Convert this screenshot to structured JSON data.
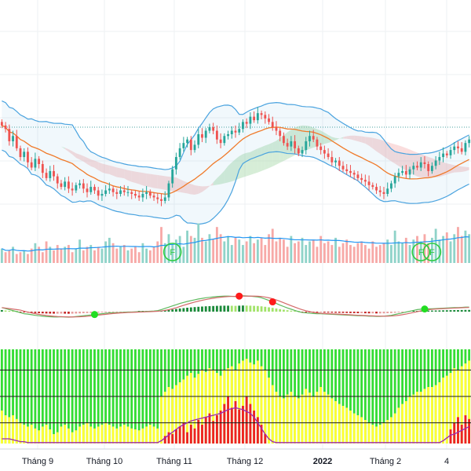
{
  "chart_data": {
    "type": "candlestick",
    "x_axis": {
      "tick_labels": [
        "Tháng 9",
        "Tháng 10",
        "Tháng 11",
        "Tháng 12",
        "2022",
        "Tháng 2",
        "4"
      ],
      "bold_labels": [
        "2022"
      ]
    },
    "grid": true,
    "colors": {
      "up": "#26a69a",
      "down": "#ef5350",
      "bollinger": "#4aa3df",
      "moving_average": "#f07a2a",
      "cloud_bull": "#a5d6a7",
      "cloud_bear": "#f4b4b4",
      "volume_ma": "#2196f3",
      "signal_dot_green": "#22dd22",
      "signal_dot_red": "#ff1a1a",
      "panel_green": "#33dd33",
      "panel_yellow": "#ffff33",
      "panel_red": "#ee2222",
      "panel_line": "#9c27b0"
    },
    "price_series": {
      "name": "",
      "close": [
        1242,
        1238,
        1224,
        1230,
        1216,
        1206,
        1212,
        1200,
        1194,
        1204,
        1198,
        1188,
        1182,
        1190,
        1184,
        1176,
        1172,
        1178,
        1170,
        1168,
        1174,
        1176,
        1170,
        1166,
        1172,
        1168,
        1162,
        1164,
        1168,
        1170,
        1166,
        1164,
        1168,
        1166,
        1166,
        1164,
        1162,
        1160,
        1164,
        1166,
        1162,
        1160,
        1158,
        1156,
        1160,
        1176,
        1192,
        1206,
        1216,
        1222,
        1226,
        1214,
        1220,
        1232,
        1228,
        1236,
        1240,
        1236,
        1226,
        1222,
        1230,
        1232,
        1236,
        1234,
        1238,
        1246,
        1244,
        1252,
        1248,
        1256,
        1254,
        1250,
        1246,
        1240,
        1236,
        1230,
        1222,
        1218,
        1224,
        1216,
        1210,
        1214,
        1224,
        1230,
        1226,
        1218,
        1214,
        1210,
        1206,
        1200,
        1202,
        1196,
        1192,
        1190,
        1188,
        1186,
        1182,
        1180,
        1178,
        1174,
        1172,
        1168,
        1166,
        1164,
        1170,
        1176,
        1184,
        1188,
        1190,
        1186,
        1192,
        1196,
        1194,
        1200,
        1198,
        1190,
        1196,
        1202,
        1206,
        1210,
        1208,
        1214,
        1218,
        1216,
        1212,
        1222,
        1226
      ],
      "ymin": 1130,
      "ymax": 1300,
      "reference_level": 1240
    },
    "volume_series": {
      "values": [
        0.8,
        0.6,
        0.7,
        0.9,
        0.5,
        0.6,
        0.7,
        0.5,
        0.8,
        1.1,
        0.9,
        0.6,
        1.2,
        0.9,
        0.7,
        1.0,
        0.8,
        0.9,
        1.0,
        0.6,
        0.8,
        1.3,
        0.7,
        0.9,
        1.0,
        0.7,
        0.9,
        0.8,
        1.2,
        1.4,
        1.1,
        0.8,
        0.9,
        1.0,
        0.7,
        0.8,
        0.9,
        0.6,
        1.1,
        0.8,
        0.7,
        0.9,
        1.2,
        2.0,
        1.1,
        1.6,
        1.0,
        1.3,
        1.5,
        0.9,
        1.8,
        1.5,
        1.4,
        2.2,
        1.4,
        1.2,
        1.6,
        1.3,
        2.0,
        1.6,
        1.2,
        1.5,
        1.0,
        1.4,
        1.3,
        1.0,
        1.2,
        1.5,
        1.1,
        1.3,
        1.4,
        1.0,
        1.6,
        1.9,
        1.2,
        1.4,
        1.3,
        0.9,
        1.5,
        1.1,
        1.2,
        1.4,
        1.0,
        1.2,
        1.3,
        0.9,
        1.5,
        1.1,
        1.2,
        1.0,
        1.4,
        0.9,
        1.1,
        1.3,
        1.0,
        0.9,
        1.1,
        1.2,
        1.0,
        0.8,
        1.2,
        0.9,
        1.0,
        1.1,
        1.3,
        1.0,
        1.8,
        1.2,
        1.1,
        1.4,
        1.0,
        1.3,
        1.5,
        1.2,
        1.6,
        1.1,
        1.4,
        1.9,
        1.3,
        1.5,
        1.7,
        1.2,
        1.6,
        2.0,
        1.5,
        1.8,
        1.6
      ],
      "markers": [
        {
          "label": "F",
          "index": 46
        },
        {
          "label": "F",
          "index": 113
        },
        {
          "label": "F",
          "index": 116
        }
      ]
    },
    "oscillator_series": {
      "values": [
        0.2,
        0.15,
        0.1,
        0.05,
        0,
        -0.05,
        -0.1,
        -0.12,
        -0.15,
        -0.18,
        -0.2,
        -0.22,
        -0.24,
        -0.25,
        -0.26,
        -0.26,
        -0.25,
        -0.26,
        -0.27,
        -0.26,
        -0.24,
        -0.22,
        -0.2,
        -0.18,
        -0.16,
        -0.14,
        -0.12,
        -0.1,
        -0.08,
        -0.06,
        -0.05,
        -0.05,
        -0.04,
        -0.03,
        -0.02,
        -0.02,
        -0.01,
        0,
        0,
        0.01,
        0.02,
        0.03,
        0.05,
        0.1,
        0.16,
        0.22,
        0.28,
        0.34,
        0.4,
        0.45,
        0.5,
        0.54,
        0.58,
        0.62,
        0.65,
        0.68,
        0.7,
        0.72,
        0.74,
        0.75,
        0.76,
        0.76,
        0.75,
        0.74,
        0.76,
        0.78,
        0.77,
        0.76,
        0.74,
        0.72,
        0.68,
        0.62,
        0.55,
        0.48,
        0.4,
        0.32,
        0.25,
        0.18,
        0.12,
        0.06,
        0,
        -0.04,
        -0.06,
        -0.08,
        -0.09,
        -0.1,
        -0.1,
        -0.11,
        -0.12,
        -0.13,
        -0.14,
        -0.15,
        -0.16,
        -0.17,
        -0.18,
        -0.19,
        -0.2,
        -0.2,
        -0.21,
        -0.22,
        -0.22,
        -0.23,
        -0.23,
        -0.22,
        -0.2,
        -0.18,
        -0.14,
        -0.1,
        -0.06,
        -0.02,
        0.02,
        0.06,
        0.1,
        0.12,
        0.13,
        0.14,
        0.14,
        0.15,
        0.16,
        0.17,
        0.18,
        0.19,
        0.2,
        0.2,
        0.21,
        0.22,
        0.22
      ],
      "signal_dots": [
        {
          "color": "green",
          "index": 25
        },
        {
          "color": "red",
          "index": 64
        },
        {
          "color": "red",
          "index": 73
        },
        {
          "color": "green",
          "index": 114
        }
      ]
    },
    "strength_panel": {
      "yellow_fraction": [
        0.35,
        0.3,
        0.28,
        0.3,
        0.26,
        0.22,
        0.2,
        0.18,
        0.2,
        0.16,
        0.14,
        0.18,
        0.2,
        0.15,
        0.1,
        0.12,
        0.18,
        0.2,
        0.16,
        0.12,
        0.14,
        0.18,
        0.2,
        0.22,
        0.18,
        0.16,
        0.18,
        0.2,
        0.22,
        0.2,
        0.18,
        0.16,
        0.18,
        0.2,
        0.18,
        0.16,
        0.15,
        0.14,
        0.16,
        0.18,
        0.2,
        0.18,
        0.16,
        0.5,
        0.55,
        0.6,
        0.58,
        0.62,
        0.65,
        0.68,
        0.72,
        0.75,
        0.7,
        0.74,
        0.78,
        0.76,
        0.8,
        0.78,
        0.75,
        0.72,
        0.78,
        0.8,
        0.82,
        0.78,
        0.85,
        0.88,
        0.9,
        0.86,
        0.84,
        0.88,
        0.82,
        0.78,
        0.7,
        0.62,
        0.55,
        0.5,
        0.48,
        0.52,
        0.55,
        0.5,
        0.48,
        0.52,
        0.58,
        0.54,
        0.5,
        0.55,
        0.6,
        0.55,
        0.52,
        0.48,
        0.45,
        0.42,
        0.4,
        0.38,
        0.35,
        0.32,
        0.3,
        0.28,
        0.25,
        0.22,
        0.2,
        0.18,
        0.2,
        0.22,
        0.25,
        0.28,
        0.32,
        0.38,
        0.42,
        0.45,
        0.5,
        0.52,
        0.55,
        0.55,
        0.58,
        0.6,
        0.6,
        0.62,
        0.65,
        0.7,
        0.72,
        0.75,
        0.8,
        0.78,
        0.82,
        0.85,
        0.88
      ],
      "red_fraction": [
        0,
        0,
        0,
        0,
        0,
        0,
        0,
        0,
        0,
        0,
        0,
        0,
        0,
        0,
        0,
        0,
        0,
        0,
        0,
        0,
        0,
        0,
        0,
        0,
        0,
        0,
        0,
        0,
        0,
        0,
        0,
        0,
        0,
        0,
        0,
        0,
        0,
        0,
        0,
        0,
        0,
        0,
        0,
        0,
        0.08,
        0.12,
        0.1,
        0.15,
        0.18,
        0.22,
        0.12,
        0.2,
        0.16,
        0.25,
        0.2,
        0.28,
        0.32,
        0.24,
        0.3,
        0.35,
        0.42,
        0.5,
        0.38,
        0.45,
        0.36,
        0.4,
        0.5,
        0.42,
        0.35,
        0.28,
        0.2,
        0.1,
        0,
        0,
        0,
        0,
        0,
        0,
        0,
        0,
        0,
        0,
        0,
        0,
        0,
        0,
        0,
        0,
        0,
        0,
        0,
        0,
        0,
        0,
        0,
        0,
        0,
        0,
        0,
        0,
        0,
        0,
        0,
        0,
        0,
        0,
        0,
        0,
        0,
        0,
        0,
        0,
        0,
        0,
        0,
        0,
        0,
        0,
        0,
        0,
        0,
        0.15,
        0.22,
        0.28,
        0.2,
        0.3,
        0.26
      ],
      "purple_line": [
        0.05,
        0.05,
        0.05,
        0.04,
        0.03,
        0.02,
        0.02,
        0.01,
        0.01,
        0.01,
        0.01,
        0.01,
        0.01,
        0.01,
        0.01,
        0.01,
        0.01,
        0.01,
        0.01,
        0.01,
        0.01,
        0.01,
        0.01,
        0.01,
        0.01,
        0.01,
        0.01,
        0.01,
        0.01,
        0.01,
        0.01,
        0.01,
        0.01,
        0.01,
        0.01,
        0.01,
        0.01,
        0.01,
        0.01,
        0.01,
        0.01,
        0.01,
        0.01,
        0.03,
        0.06,
        0.09,
        0.12,
        0.15,
        0.18,
        0.2,
        0.22,
        0.24,
        0.25,
        0.26,
        0.27,
        0.28,
        0.29,
        0.3,
        0.31,
        0.32,
        0.34,
        0.36,
        0.37,
        0.38,
        0.37,
        0.36,
        0.34,
        0.32,
        0.28,
        0.22,
        0.16,
        0.1,
        0.05,
        0.02,
        0.01,
        0.01,
        0.01,
        0.01,
        0.01,
        0.01,
        0.01,
        0.01,
        0.01,
        0.01,
        0.01,
        0.01,
        0.01,
        0.01,
        0.01,
        0.01,
        0.01,
        0.01,
        0.01,
        0.01,
        0.01,
        0.01,
        0.01,
        0.01,
        0.01,
        0.01,
        0.01,
        0.01,
        0.01,
        0.01,
        0.01,
        0.01,
        0.01,
        0.01,
        0.01,
        0.01,
        0.01,
        0.01,
        0.01,
        0.01,
        0.01,
        0.01,
        0.01,
        0.01,
        0.01,
        0.03,
        0.06,
        0.09,
        0.1,
        0.12,
        0.14,
        0.16,
        0.18
      ]
    }
  }
}
